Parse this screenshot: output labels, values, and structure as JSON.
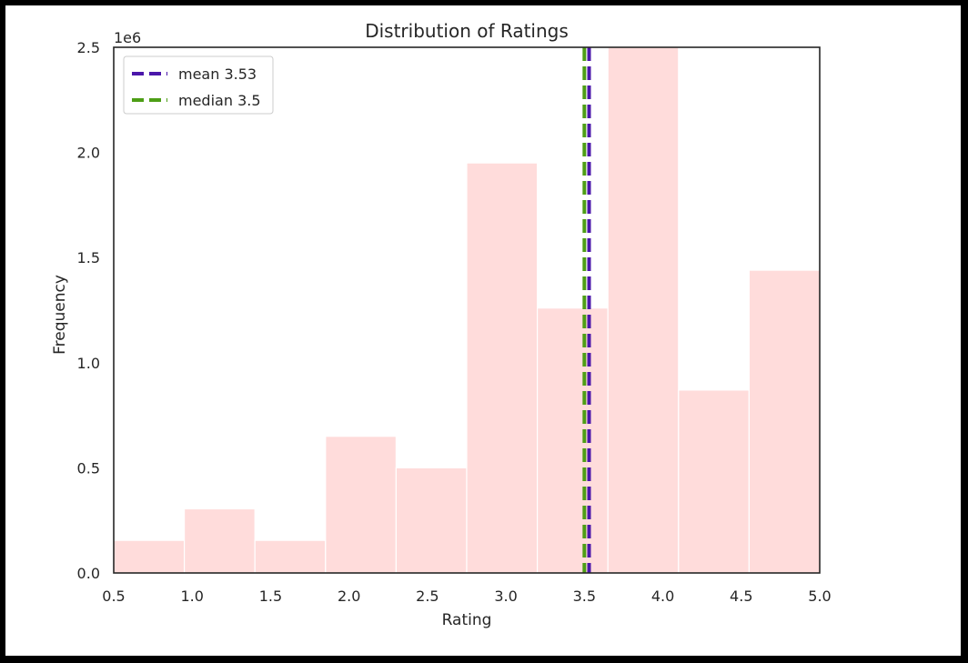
{
  "chart_data": {
    "type": "bar",
    "title": "Distribution of Ratings",
    "xlabel": "Rating",
    "ylabel": "Frequency",
    "y_offset_label": "1e6",
    "xlim": [
      0.5,
      5.0
    ],
    "ylim": [
      0,
      2.5
    ],
    "y_scale": 1000000,
    "x_ticks": [
      "0.5",
      "1.0",
      "1.5",
      "2.0",
      "2.5",
      "3.0",
      "3.5",
      "4.0",
      "4.5",
      "5.0"
    ],
    "y_ticks": [
      "0.0",
      "0.5",
      "1.0",
      "1.5",
      "2.0",
      "2.5"
    ],
    "grid": false,
    "legend_position": "top-left",
    "bins": [
      {
        "x0": 0.5,
        "x1": 0.95,
        "value": 0.155
      },
      {
        "x0": 0.95,
        "x1": 1.4,
        "value": 0.305
      },
      {
        "x0": 1.4,
        "x1": 1.85,
        "value": 0.155
      },
      {
        "x0": 1.85,
        "x1": 2.3,
        "value": 0.65
      },
      {
        "x0": 2.3,
        "x1": 2.75,
        "value": 0.5
      },
      {
        "x0": 2.75,
        "x1": 3.2,
        "value": 1.95
      },
      {
        "x0": 3.2,
        "x1": 3.65,
        "value": 1.26
      },
      {
        "x0": 3.65,
        "x1": 4.1,
        "value": 2.5
      },
      {
        "x0": 4.1,
        "x1": 4.55,
        "value": 0.87
      },
      {
        "x0": 4.55,
        "x1": 5.0,
        "value": 1.44
      }
    ],
    "bar_color": "#ffdcdb",
    "reference_lines": [
      {
        "name": "mean",
        "label": "mean 3.53",
        "x": 3.53,
        "color": "#4b17aa"
      },
      {
        "name": "median",
        "label": "median 3.5",
        "x": 3.5,
        "color": "#4d9e16"
      }
    ]
  }
}
